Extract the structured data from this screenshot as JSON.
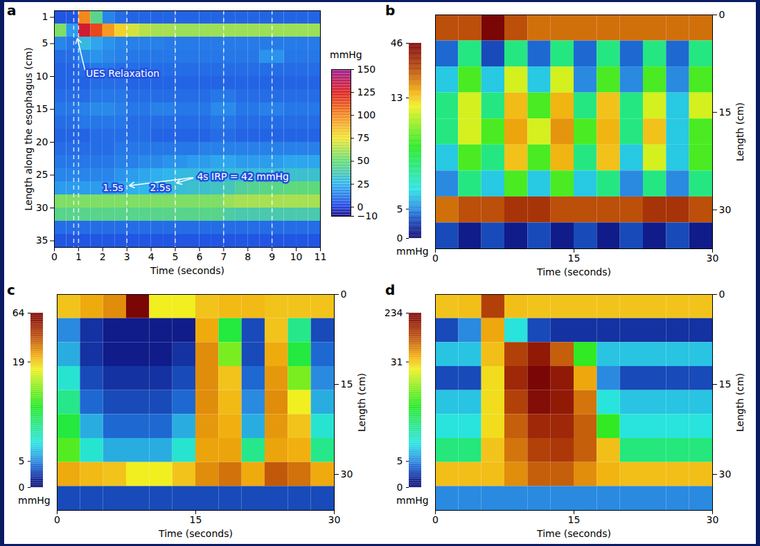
{
  "chart_data": [
    {
      "type": "heatmap",
      "panel": "a",
      "x_label": "Time (seconds)",
      "y_label": "Length along the esophagus (cm)",
      "xlim": [
        0,
        11
      ],
      "xticks": [
        0,
        1,
        2,
        3,
        4,
        5,
        6,
        7,
        8,
        9,
        10,
        11
      ],
      "ylim": [
        0,
        36
      ],
      "yticks": [
        1,
        5,
        10,
        15,
        20,
        25,
        30,
        35
      ],
      "time_bins": [
        0,
        0.5,
        1,
        1.5,
        2,
        2.5,
        3,
        3.5,
        4,
        4.5,
        5,
        5.5,
        6,
        6.5,
        7,
        7.5,
        8,
        8.5,
        9,
        9.5,
        10,
        10.5,
        11
      ],
      "length_bins": [
        0,
        2,
        4,
        6,
        8,
        10,
        12,
        14,
        16,
        18,
        20,
        22,
        24,
        26,
        28,
        30,
        32,
        34,
        36
      ],
      "cells": [
        [
          5,
          5,
          100,
          45,
          15,
          10,
          8,
          8,
          8,
          8,
          8,
          8,
          8,
          8,
          8,
          8,
          8,
          8,
          8,
          8,
          8,
          8
        ],
        [
          55,
          20,
          130,
          115,
          95,
          80,
          70,
          65,
          62,
          62,
          60,
          60,
          60,
          60,
          60,
          60,
          60,
          60,
          60,
          60,
          60,
          60
        ],
        [
          15,
          12,
          28,
          22,
          18,
          15,
          14,
          14,
          14,
          13,
          13,
          13,
          13,
          13,
          13,
          13,
          13,
          13,
          13,
          13,
          13,
          13
        ],
        [
          10,
          10,
          16,
          18,
          16,
          14,
          12,
          12,
          12,
          12,
          12,
          12,
          12,
          12,
          12,
          12,
          12,
          18,
          18,
          12,
          12,
          12
        ],
        [
          8,
          8,
          10,
          12,
          12,
          10,
          10,
          10,
          10,
          10,
          10,
          10,
          10,
          10,
          10,
          10,
          10,
          10,
          10,
          10,
          10,
          10
        ],
        [
          8,
          8,
          8,
          10,
          10,
          10,
          8,
          8,
          8,
          8,
          8,
          8,
          8,
          8,
          8,
          8,
          8,
          8,
          8,
          8,
          8,
          8
        ],
        [
          10,
          10,
          10,
          12,
          12,
          12,
          10,
          10,
          10,
          10,
          10,
          10,
          10,
          12,
          12,
          10,
          10,
          10,
          10,
          10,
          10,
          10
        ],
        [
          12,
          12,
          14,
          16,
          16,
          14,
          12,
          12,
          14,
          14,
          12,
          12,
          12,
          16,
          16,
          12,
          12,
          14,
          14,
          12,
          12,
          12
        ],
        [
          10,
          10,
          12,
          12,
          12,
          12,
          10,
          10,
          10,
          10,
          10,
          10,
          10,
          12,
          12,
          10,
          10,
          10,
          10,
          10,
          10,
          10
        ],
        [
          8,
          8,
          8,
          10,
          10,
          10,
          10,
          10,
          8,
          8,
          8,
          8,
          8,
          10,
          10,
          8,
          8,
          8,
          8,
          8,
          8,
          8
        ],
        [
          10,
          10,
          10,
          10,
          10,
          12,
          12,
          12,
          12,
          12,
          12,
          12,
          14,
          14,
          14,
          14,
          14,
          14,
          14,
          14,
          14,
          14
        ],
        [
          12,
          12,
          12,
          12,
          12,
          14,
          14,
          16,
          16,
          18,
          18,
          20,
          20,
          22,
          22,
          20,
          20,
          20,
          20,
          22,
          22,
          22
        ],
        [
          15,
          15,
          15,
          15,
          15,
          18,
          20,
          22,
          24,
          26,
          28,
          28,
          28,
          30,
          30,
          30,
          30,
          30,
          30,
          32,
          32,
          32
        ],
        [
          20,
          20,
          20,
          20,
          20,
          22,
          24,
          26,
          28,
          30,
          30,
          32,
          32,
          34,
          36,
          42,
          44,
          46,
          46,
          48,
          48,
          48
        ],
        [
          55,
          55,
          55,
          55,
          55,
          55,
          55,
          55,
          55,
          55,
          55,
          55,
          55,
          55,
          60,
          62,
          62,
          62,
          62,
          62,
          62,
          62
        ],
        [
          45,
          45,
          45,
          45,
          45,
          45,
          45,
          45,
          45,
          45,
          45,
          45,
          45,
          45,
          40,
          38,
          38,
          38,
          38,
          38,
          38,
          38
        ],
        [
          10,
          10,
          10,
          10,
          10,
          10,
          10,
          10,
          10,
          10,
          10,
          10,
          10,
          10,
          10,
          10,
          10,
          10,
          10,
          10,
          10,
          10
        ],
        [
          5,
          5,
          5,
          5,
          5,
          5,
          5,
          5,
          5,
          5,
          5,
          5,
          5,
          5,
          5,
          5,
          5,
          5,
          5,
          5,
          5,
          5
        ]
      ],
      "color_label": "mmHg",
      "color_range": [
        -10,
        150
      ],
      "color_ticks": [
        -10,
        0,
        25,
        50,
        75,
        100,
        125,
        150
      ],
      "dashed_lines": [
        0.8,
        1,
        3,
        5,
        7,
        9
      ],
      "annotations": [
        {
          "text": "UES Relaxation",
          "x": 1.3,
          "y": 9.6,
          "arrows_to": [
            [
              0.95,
              4.2
            ]
          ]
        },
        {
          "text": "1.5s",
          "x": 2.0,
          "y": 27.0
        },
        {
          "text": "2.5s",
          "x": 3.95,
          "y": 27.0
        },
        {
          "text": "4s IRP = 42 mmHg",
          "x": 5.9,
          "y": 25.3,
          "arrows_to": [
            [
              3.1,
              26.6
            ],
            [
              5.05,
              26.2
            ]
          ]
        }
      ]
    },
    {
      "type": "heatmap",
      "panel": "b",
      "x_label": "Time (seconds)",
      "y_label": "Length (cm)",
      "xlim": [
        0,
        30
      ],
      "xticks": [
        0,
        15,
        30
      ],
      "ylim": [
        0,
        36
      ],
      "yticks": [
        0,
        15,
        30
      ],
      "time_bins": [
        0,
        2.5,
        5,
        7.5,
        10,
        12.5,
        15,
        17.5,
        20,
        22.5,
        25,
        27.5,
        30
      ],
      "length_bins": [
        0,
        4,
        8,
        12,
        16,
        20,
        24,
        28,
        32,
        36
      ],
      "cells": [
        [
          30,
          30,
          46,
          30,
          25,
          25,
          25,
          25,
          25,
          25,
          25,
          25
        ],
        [
          4,
          8,
          3,
          8,
          4,
          8,
          4,
          8,
          4,
          8,
          4,
          8
        ],
        [
          6,
          10,
          6,
          12,
          6,
          12,
          5,
          10,
          5,
          10,
          5,
          10
        ],
        [
          8,
          12,
          8,
          15,
          10,
          16,
          8,
          14,
          8,
          12,
          6,
          12
        ],
        [
          8,
          12,
          10,
          18,
          12,
          20,
          10,
          16,
          8,
          14,
          6,
          10
        ],
        [
          6,
          10,
          8,
          14,
          10,
          16,
          8,
          14,
          6,
          12,
          6,
          10
        ],
        [
          5,
          8,
          6,
          10,
          6,
          10,
          6,
          8,
          5,
          8,
          5,
          8
        ],
        [
          25,
          30,
          30,
          35,
          35,
          30,
          30,
          30,
          30,
          35,
          35,
          30
        ],
        [
          3,
          1,
          3,
          1,
          3,
          1,
          3,
          1,
          3,
          1,
          3,
          1
        ]
      ],
      "color_label": "mmHg",
      "color_ticks": [
        0,
        5,
        13,
        46
      ]
    },
    {
      "type": "heatmap",
      "panel": "c",
      "x_label": "Time (seconds)",
      "y_label": "Length (cm)",
      "xlim": [
        0,
        30
      ],
      "xticks": [
        0,
        15,
        30
      ],
      "ylim": [
        0,
        36
      ],
      "yticks": [
        0,
        15,
        30
      ],
      "time_bins": [
        0,
        2.5,
        5,
        7.5,
        10,
        12.5,
        15,
        17.5,
        20,
        22.5,
        25,
        27.5,
        30
      ],
      "length_bins": [
        0,
        4,
        8,
        12,
        16,
        20,
        24,
        28,
        32,
        36
      ],
      "cells": [
        [
          20,
          25,
          30,
          64,
          18,
          18,
          20,
          22,
          22,
          20,
          20,
          20
        ],
        [
          5,
          2,
          1,
          1,
          1,
          1,
          25,
          12,
          3,
          20,
          10,
          3
        ],
        [
          6,
          2,
          1,
          1,
          1,
          2,
          30,
          15,
          3,
          25,
          12,
          4
        ],
        [
          8,
          3,
          2,
          2,
          2,
          3,
          30,
          20,
          4,
          28,
          15,
          5
        ],
        [
          10,
          4,
          3,
          3,
          3,
          4,
          30,
          22,
          5,
          30,
          18,
          6
        ],
        [
          12,
          6,
          4,
          4,
          4,
          6,
          28,
          24,
          6,
          28,
          20,
          8
        ],
        [
          14,
          8,
          6,
          6,
          6,
          8,
          26,
          26,
          10,
          26,
          24,
          10
        ],
        [
          25,
          22,
          20,
          18,
          18,
          20,
          30,
          35,
          25,
          40,
          35,
          25
        ],
        [
          3,
          3,
          3,
          3,
          3,
          3,
          3,
          3,
          3,
          3,
          3,
          3
        ]
      ],
      "color_label": "mmHg",
      "color_ticks": [
        0,
        5,
        19,
        64
      ]
    },
    {
      "type": "heatmap",
      "panel": "d",
      "x_label": "Time (seconds)",
      "y_label": "Length (cm)",
      "xlim": [
        0,
        30
      ],
      "xticks": [
        0,
        15,
        30
      ],
      "ylim": [
        0,
        36
      ],
      "yticks": [
        0,
        15,
        30
      ],
      "time_bins": [
        0,
        2.5,
        5,
        7.5,
        10,
        12.5,
        15,
        17.5,
        20,
        22.5,
        25,
        27.5,
        30
      ],
      "length_bins": [
        0,
        4,
        8,
        12,
        16,
        20,
        24,
        28,
        32,
        36
      ],
      "cells": [
        [
          35,
          40,
          150,
          40,
          35,
          35,
          35,
          35,
          35,
          35,
          35,
          35
        ],
        [
          3,
          5,
          60,
          10,
          3,
          2,
          2,
          2,
          2,
          2,
          2,
          2
        ],
        [
          8,
          8,
          40,
          150,
          200,
          120,
          20,
          8,
          8,
          8,
          8,
          8
        ],
        [
          3,
          3,
          30,
          180,
          234,
          200,
          60,
          5,
          3,
          3,
          3,
          3
        ],
        [
          8,
          8,
          30,
          150,
          220,
          200,
          100,
          10,
          8,
          8,
          8,
          8
        ],
        [
          10,
          10,
          30,
          120,
          180,
          180,
          120,
          20,
          10,
          10,
          10,
          10
        ],
        [
          15,
          15,
          35,
          100,
          150,
          160,
          120,
          40,
          15,
          15,
          15,
          15
        ],
        [
          40,
          40,
          40,
          80,
          120,
          120,
          80,
          50,
          40,
          40,
          40,
          40
        ],
        [
          5,
          5,
          5,
          5,
          5,
          5,
          5,
          5,
          5,
          5,
          5,
          5
        ]
      ],
      "color_label": "mmHg",
      "color_ticks": [
        0,
        5,
        31,
        234
      ]
    }
  ]
}
